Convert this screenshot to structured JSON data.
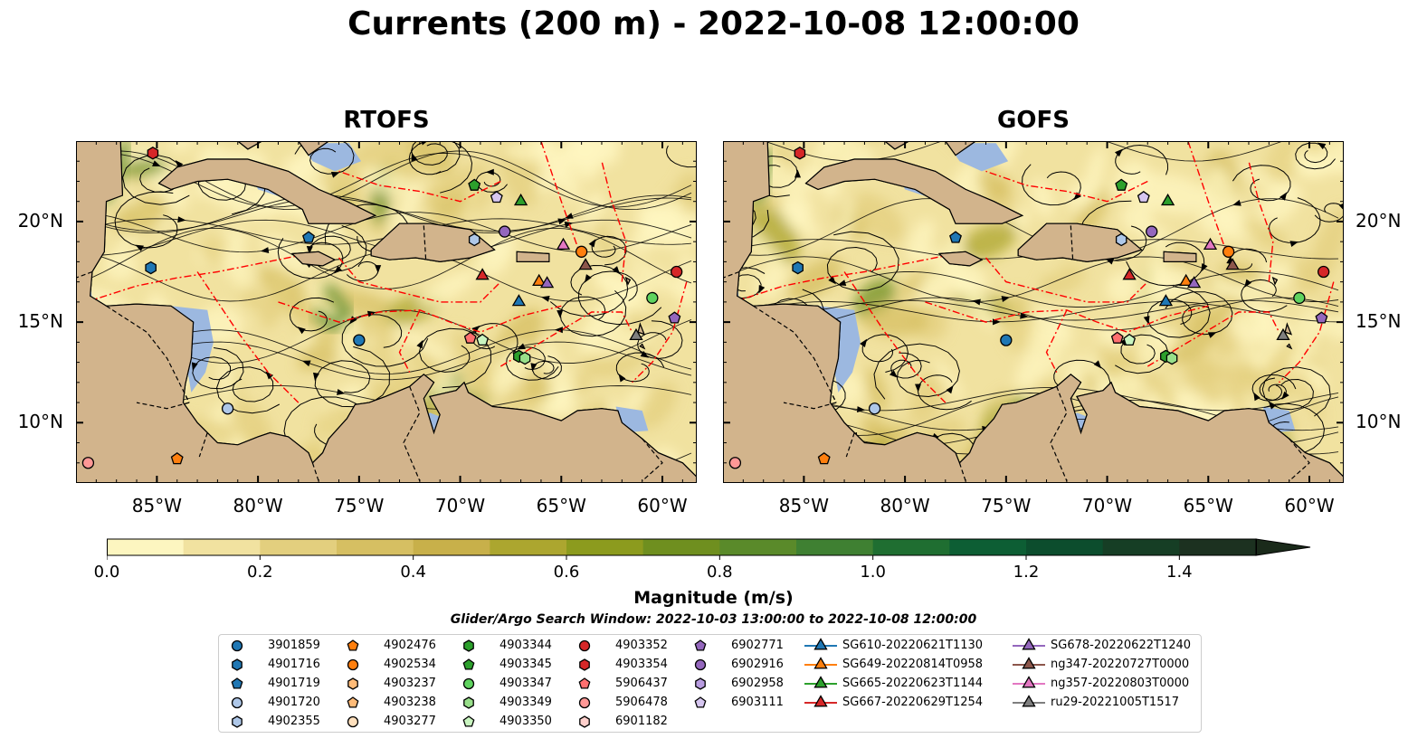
{
  "title": "Currents (200 m) - 2022-10-08 12:00:00",
  "panels": [
    {
      "id": "rtofs",
      "title": "RTOFS"
    },
    {
      "id": "gofs",
      "title": "GOFS"
    }
  ],
  "axes": {
    "lon_ticks": [
      "85°W",
      "80°W",
      "75°W",
      "70°W",
      "65°W",
      "60°W"
    ],
    "lat_ticks": [
      "20°N",
      "15°N",
      "10°N"
    ],
    "lon_range": [
      -89,
      -58.3
    ],
    "lat_range": [
      7,
      24
    ]
  },
  "colors": {
    "land": "#d2b48c",
    "shallow_water": "#9cb8e0",
    "eez_lines": "#ff0000",
    "streamlines": "#000000",
    "colormap": [
      "#fdf6c0",
      "#f1e2a0",
      "#e3cf7e",
      "#d6bf62",
      "#c8b04a",
      "#aca62f",
      "#8c9b1e",
      "#6f8f1f",
      "#5a8a2a",
      "#3f8032",
      "#1f6e31",
      "#0d5e34",
      "#0c4d2d",
      "#163e25",
      "#1c3120",
      "#1a2a1a"
    ]
  },
  "colorbar": {
    "ticks": [
      "0.0",
      "0.2",
      "0.4",
      "0.6",
      "0.8",
      "1.0",
      "1.2",
      "1.4"
    ],
    "label": "Magnitude (m/s)",
    "range": [
      0,
      1.5
    ]
  },
  "search_window": "Glider/Argo Search Window: 2022-10-03 13:00:00 to 2022-10-08 12:00:00",
  "legend": {
    "argo": [
      {
        "id": "3901859",
        "shape": "circle",
        "color": "#1f77b4"
      },
      {
        "id": "4901716",
        "shape": "hexagon",
        "color": "#1f77b4"
      },
      {
        "id": "4901719",
        "shape": "pentagon",
        "color": "#1f77b4"
      },
      {
        "id": "4901720",
        "shape": "circle",
        "color": "#aec7e8"
      },
      {
        "id": "4902355",
        "shape": "hexagon",
        "color": "#aec7e8"
      },
      {
        "id": "4902476",
        "shape": "pentagon",
        "color": "#ff7f0e"
      },
      {
        "id": "4902534",
        "shape": "circle",
        "color": "#ff7f0e"
      },
      {
        "id": "4903237",
        "shape": "hexagon",
        "color": "#ffbb78"
      },
      {
        "id": "4903238",
        "shape": "pentagon",
        "color": "#ffbb78"
      },
      {
        "id": "4903277",
        "shape": "circle",
        "color": "#ffe0bd"
      },
      {
        "id": "4903344",
        "shape": "hexagon",
        "color": "#2ca02c"
      },
      {
        "id": "4903345",
        "shape": "pentagon",
        "color": "#2ca02c"
      },
      {
        "id": "4903347",
        "shape": "circle",
        "color": "#5fd35f"
      },
      {
        "id": "4903349",
        "shape": "hexagon",
        "color": "#98df8a"
      },
      {
        "id": "4903350",
        "shape": "pentagon",
        "color": "#c9f5c0"
      },
      {
        "id": "4903352",
        "shape": "circle",
        "color": "#d62728"
      },
      {
        "id": "4903354",
        "shape": "hexagon",
        "color": "#d62728"
      },
      {
        "id": "5906437",
        "shape": "pentagon",
        "color": "#ff6f6f"
      },
      {
        "id": "5906478",
        "shape": "circle",
        "color": "#ff9896"
      },
      {
        "id": "6901182",
        "shape": "hexagon",
        "color": "#ffd0cc"
      },
      {
        "id": "6902771",
        "shape": "pentagon",
        "color": "#9467bd"
      },
      {
        "id": "6902916",
        "shape": "circle",
        "color": "#9467bd"
      },
      {
        "id": "6902958",
        "shape": "hexagon",
        "color": "#b89ce0"
      },
      {
        "id": "6903111",
        "shape": "pentagon",
        "color": "#d6c6f0"
      }
    ],
    "gliders": [
      {
        "id": "SG610-20220621T1130",
        "color": "#1f77b4"
      },
      {
        "id": "SG649-20220814T0958",
        "color": "#ff7f0e"
      },
      {
        "id": "SG665-20220623T1144",
        "color": "#2ca02c"
      },
      {
        "id": "SG667-20220629T1254",
        "color": "#d62728"
      },
      {
        "id": "SG678-20220622T1240",
        "color": "#9467bd"
      },
      {
        "id": "ng347-20220727T0000",
        "color": "#8c564b"
      },
      {
        "id": "ng357-20220803T0000",
        "color": "#e377c2"
      },
      {
        "id": "ru29-20221005T1517",
        "color": "#7f7f7f"
      }
    ]
  },
  "map_markers": [
    {
      "id": "3901859",
      "lon": -75.0,
      "lat": 14.1
    },
    {
      "id": "4901716",
      "lon": -85.3,
      "lat": 17.7
    },
    {
      "id": "4901719",
      "lon": -77.5,
      "lat": 19.2
    },
    {
      "id": "4901720",
      "lon": -81.5,
      "lat": 10.7
    },
    {
      "id": "4902355",
      "lon": -69.3,
      "lat": 19.1
    },
    {
      "id": "4902476",
      "lon": -84.0,
      "lat": 8.2
    },
    {
      "id": "4902534",
      "lon": -64.0,
      "lat": 18.5
    },
    {
      "id": "4903344",
      "lon": -67.1,
      "lat": 13.3
    },
    {
      "id": "4903345",
      "lon": -69.3,
      "lat": 21.8
    },
    {
      "id": "4903347",
      "lon": -60.5,
      "lat": 16.2
    },
    {
      "id": "4903349",
      "lon": -66.8,
      "lat": 13.2
    },
    {
      "id": "4903350",
      "lon": -68.9,
      "lat": 14.1
    },
    {
      "id": "4903352",
      "lon": -59.3,
      "lat": 17.5
    },
    {
      "id": "4903354",
      "lon": -85.2,
      "lat": 23.4
    },
    {
      "id": "5906437",
      "lon": -69.5,
      "lat": 14.2
    },
    {
      "id": "5906478",
      "lon": -88.4,
      "lat": 8.0
    },
    {
      "id": "6902771",
      "lon": -59.4,
      "lat": 15.2
    },
    {
      "id": "6902916",
      "lon": -67.8,
      "lat": 19.5
    },
    {
      "id": "6903111",
      "lon": -68.2,
      "lat": 21.2
    },
    {
      "id": "SG610-20220621T1130",
      "lon": -67.1,
      "lat": 16.0
    },
    {
      "id": "SG649-20220814T0958",
      "lon": -66.1,
      "lat": 17.0
    },
    {
      "id": "SG665-20220623T1144",
      "lon": -67.0,
      "lat": 21.0
    },
    {
      "id": "SG667-20220629T1254",
      "lon": -68.9,
      "lat": 17.3
    },
    {
      "id": "SG678-20220622T1240",
      "lon": -65.7,
      "lat": 16.9
    },
    {
      "id": "ng347-20220727T0000",
      "lon": -63.8,
      "lat": 17.8
    },
    {
      "id": "ng357-20220803T0000",
      "lon": -64.9,
      "lat": 18.8
    },
    {
      "id": "ru29-20221005T1517",
      "lon": -61.3,
      "lat": 14.3
    }
  ]
}
